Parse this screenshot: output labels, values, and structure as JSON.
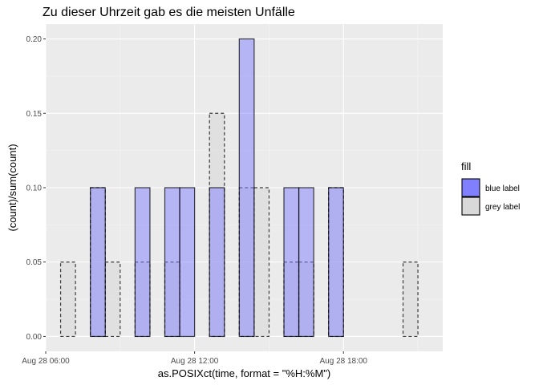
{
  "chart_data": {
    "type": "bar",
    "title": "Zu dieser Uhrzeit gab es die meisten Unfälle",
    "xlabel": "as.POSIXct(time, format = \"%H:%M\")",
    "ylabel": "(count)/sum(count)",
    "x_ticks": [
      "Aug 28 06:00",
      "Aug 28 12:00",
      "Aug 28 18:00"
    ],
    "x_tick_hours": [
      6,
      12,
      18
    ],
    "y_ticks": [
      "0.00",
      "0.05",
      "0.10",
      "0.15",
      "0.20"
    ],
    "ylim": [
      0,
      0.2
    ],
    "xlim_hours": [
      6,
      22
    ],
    "bin_width_hours": 0.6,
    "bin_start_hours": 6.6,
    "grid": true,
    "legend": {
      "title": "fill",
      "position": "right"
    },
    "series": [
      {
        "name": "blue label",
        "color": "#8080ff",
        "outline": "solid",
        "values": [
          0,
          0,
          0.1,
          0,
          0,
          0.1,
          0,
          0.1,
          0.1,
          0,
          0.1,
          0,
          0.2,
          0,
          0,
          0.1,
          0.1,
          0,
          0.1,
          0,
          0,
          0,
          0,
          0
        ]
      },
      {
        "name": "grey label",
        "color": "#d9d9d9",
        "outline": "dashed",
        "values": [
          0.05,
          0,
          0.1,
          0.05,
          0,
          0.05,
          0,
          0.05,
          0,
          0,
          0.15,
          0,
          0.1,
          0.1,
          0,
          0.05,
          0.05,
          0,
          0.1,
          0,
          0,
          0,
          0,
          0.05
        ]
      }
    ]
  }
}
